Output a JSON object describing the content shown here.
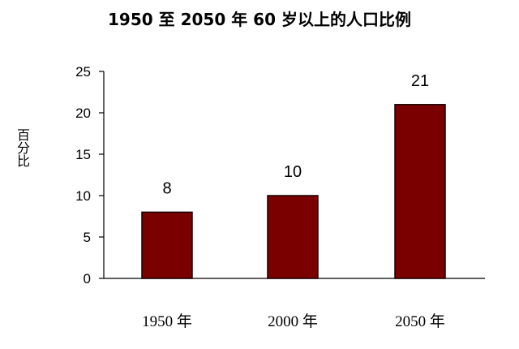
{
  "chart_data": {
    "type": "bar",
    "title": "1950 至 2050 年 60 岁以上的人口比例",
    "ylabel": "百分比",
    "xlabel": "",
    "categories": [
      "1950 年",
      "2000 年",
      "2050 年"
    ],
    "values": [
      8,
      10,
      21
    ],
    "data_labels": [
      "8",
      "10",
      "21"
    ],
    "ylim": [
      0,
      25
    ],
    "yticks": [
      0,
      5,
      10,
      15,
      20,
      25
    ],
    "grid": false,
    "bar_color": "#7a0000",
    "bar_edge_color": "#1a0000"
  }
}
